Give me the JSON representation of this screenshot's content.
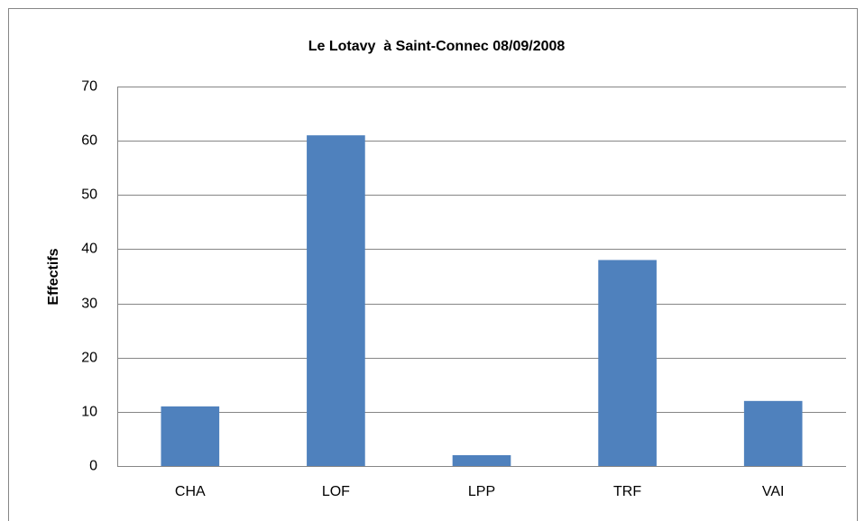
{
  "chart_data": {
    "type": "bar",
    "title": "Le Lotavy  à Saint-Connec 08/09/2008",
    "y_label": "Effectifs",
    "categories": [
      "CHA",
      "LOF",
      "LPP",
      "TRF",
      "VAI"
    ],
    "values": [
      11,
      61,
      2,
      38,
      12
    ],
    "color": "#4f81bd",
    "ylim": [
      0,
      70
    ],
    "yticks": [
      0,
      10,
      20,
      30,
      40,
      50,
      60,
      70
    ],
    "grid": true
  }
}
